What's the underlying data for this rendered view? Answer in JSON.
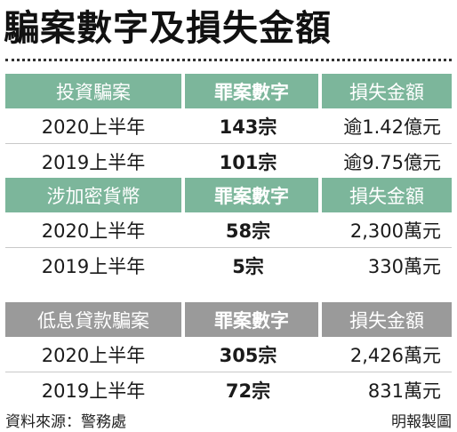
{
  "title": "騙案數字及損失金額",
  "sections": [
    {
      "header": [
        "投資騙案",
        "罪案數字",
        "損失金額"
      ],
      "rows": [
        [
          "2020上半年",
          "143宗",
          "逾1.42億元"
        ],
        [
          "2019上半年",
          "101宗",
          "逾9.75億元"
        ]
      ]
    },
    {
      "header": [
        "涉加密貨幣",
        "罪案數字",
        "損失金額"
      ],
      "rows": [
        [
          "2020上半年",
          "58宗",
          "2,300萬元"
        ],
        [
          "2019上半年",
          "5宗",
          "330萬元"
        ]
      ]
    },
    {
      "header": [
        "低息貸款騙案",
        "罪案數字",
        "損失金額"
      ],
      "rows": [
        [
          "2020上半年",
          "305宗",
          "2,426萬元"
        ],
        [
          "2019上半年",
          "72宗",
          "831萬元"
        ]
      ]
    }
  ],
  "footer": {
    "source": "資料來源：警務處",
    "credit": "明報製圖"
  },
  "colors": {
    "header_green": "#7cb69b",
    "header_gray": "#9a9a9a"
  }
}
